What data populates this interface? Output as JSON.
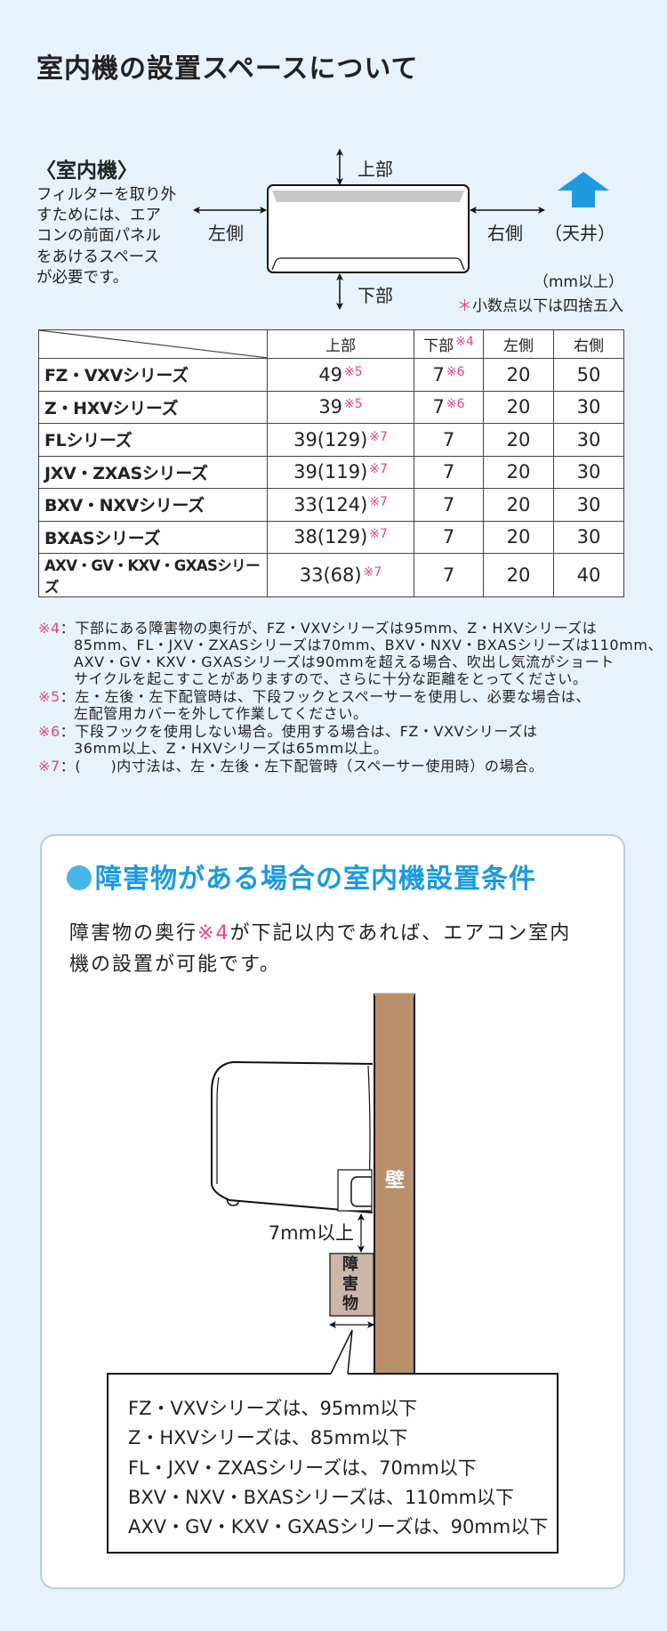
{
  "title": "室内機の設置スペースについて",
  "indoor_unit": {
    "label": "〈室内機〉",
    "description_lines": [
      "フィルターを取り外",
      "すためには、エア",
      "コンの前面パネル",
      "をあけるスペース",
      "が必要です。"
    ],
    "top": "上部",
    "bottom": "下部",
    "left": "左側",
    "right": "右側",
    "ceiling": "（天井）",
    "unit_note": "（mm以上）",
    "rounding_mark": "＊",
    "rounding_note": "小数点以下は四捨五入",
    "ceiling_arrow_color": "#1e9be0"
  },
  "table": {
    "headers": [
      "",
      "上部",
      "下部",
      "左側",
      "右側"
    ],
    "header_marks": [
      "",
      "",
      "※4",
      "",
      ""
    ],
    "rows": [
      {
        "name": "FZ・VXVシリーズ",
        "top": "49",
        "top_mark": "※5",
        "bottom": "7",
        "bottom_mark": "※6",
        "left": "20",
        "right": "50"
      },
      {
        "name": "Z・HXVシリーズ",
        "top": "39",
        "top_mark": "※5",
        "bottom": "7",
        "bottom_mark": "※6",
        "left": "20",
        "right": "30"
      },
      {
        "name": "FLシリーズ",
        "top": "39(129)",
        "top_mark": "※7",
        "bottom": "7",
        "bottom_mark": "",
        "left": "20",
        "right": "30"
      },
      {
        "name": "JXV・ZXASシリーズ",
        "top": "39(119)",
        "top_mark": "※7",
        "bottom": "7",
        "bottom_mark": "",
        "left": "20",
        "right": "30"
      },
      {
        "name": "BXV・NXVシリーズ",
        "top": "33(124)",
        "top_mark": "※7",
        "bottom": "7",
        "bottom_mark": "",
        "left": "20",
        "right": "30"
      },
      {
        "name": "BXASシリーズ",
        "top": "38(129)",
        "top_mark": "※7",
        "bottom": "7",
        "bottom_mark": "",
        "left": "20",
        "right": "30"
      },
      {
        "name": "AXV・GV・KXV・GXASシリーズ",
        "top": "33(68)",
        "top_mark": "※7",
        "bottom": "7",
        "bottom_mark": "",
        "left": "20",
        "right": "40"
      }
    ]
  },
  "notes": [
    {
      "mark": "※4",
      "lines": [
        "：下部にある障害物の奥行が、FZ・VXVシリーズは95mm、Z・HXVシリーズは",
        "85mm、FL・JXV・ZXASシリーズは70mm、BXV・NXV・BXASシリーズは110mm、",
        "AXV・GV・KXV・GXASシリーズは90mmを超える場合、吹出し気流がショート",
        "サイクルを起こすことがありますので、さらに十分な距離をとってください。"
      ]
    },
    {
      "mark": "※5",
      "lines": [
        "：左・左後・左下配管時は、下段フックとスペーサーを使用し、必要な場合は、",
        "左配管用カバーを外して作業してください。"
      ]
    },
    {
      "mark": "※6",
      "lines": [
        "：下段フックを使用しない場合。使用する場合は、FZ・VXVシリーズは",
        "36mm以上、Z・HXVシリーズは65mm以上。"
      ]
    },
    {
      "mark": "※7",
      "lines": [
        "：(　　)内寸法は、左・左後・左下配管時（スペーサー使用時）の場合。"
      ]
    }
  ],
  "obstacle_panel": {
    "heading": "障害物がある場合の室内機設置条件",
    "heading_color": "#1a9ae0",
    "body_pre": "障害物の奥行",
    "body_mark": "※4",
    "body_post": "が下記以内であれば、エアコン室内",
    "body_line2": "機の設置が可能です。",
    "wall_label": "壁",
    "gap_label": "7mm以上",
    "obstacle_label": [
      "障",
      "害",
      "物"
    ],
    "wall_color": "#b8906b",
    "limits": [
      "FZ・VXVシリーズは、95mm以下",
      "Z・HXVシリーズは、85mm以下",
      "FL・JXV・ZXASシリーズは、70mm以下",
      "BXV・NXV・BXASシリーズは、110mm以下",
      "AXV・GV・KXV・GXASシリーズは、90mm以下"
    ]
  }
}
